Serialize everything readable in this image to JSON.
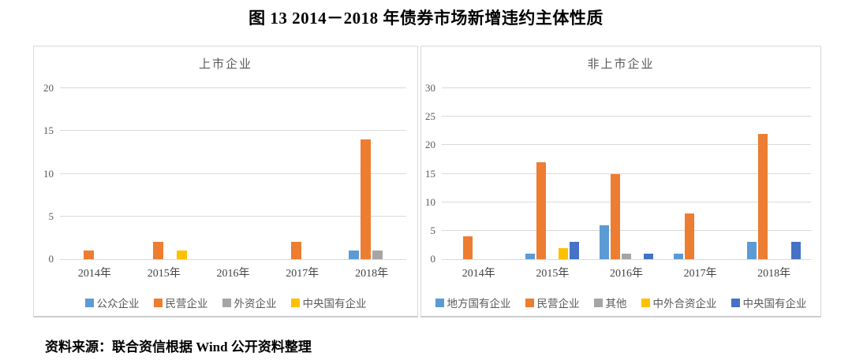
{
  "page": {
    "title": "图 13  2014－2018 年债券市场新增违约主体性质",
    "source": "资料来源：联合资信根据 Wind 公开资料整理"
  },
  "chart_data": [
    {
      "type": "bar",
      "title": "上市企业",
      "categories": [
        "2014年",
        "2015年",
        "2016年",
        "2017年",
        "2018年"
      ],
      "series": [
        {
          "name": "公众企业",
          "color": "#5B9BD5",
          "values": [
            0,
            0,
            0,
            0,
            1
          ]
        },
        {
          "name": "民营企业",
          "color": "#ED7D31",
          "values": [
            1,
            2,
            0,
            2,
            14
          ]
        },
        {
          "name": "外资企业",
          "color": "#A5A5A5",
          "values": [
            0,
            0,
            0,
            0,
            1
          ]
        },
        {
          "name": "中央国有企业",
          "color": "#FFC000",
          "values": [
            0,
            1,
            0,
            0,
            0
          ]
        }
      ],
      "ylim": [
        0,
        20
      ],
      "yticks": [
        0,
        5,
        10,
        15,
        20
      ],
      "grid": true,
      "legend_position": "bottom",
      "xlabel": "",
      "ylabel": ""
    },
    {
      "type": "bar",
      "title": "非上市企业",
      "categories": [
        "2014年",
        "2015年",
        "2016年",
        "2017年",
        "2018年"
      ],
      "series": [
        {
          "name": "地方国有企业",
          "color": "#5B9BD5",
          "values": [
            0,
            1,
            6,
            1,
            3
          ]
        },
        {
          "name": "民营企业",
          "color": "#ED7D31",
          "values": [
            4,
            17,
            15,
            8,
            22
          ]
        },
        {
          "name": "其他",
          "color": "#A5A5A5",
          "values": [
            0,
            0,
            1,
            0,
            0
          ]
        },
        {
          "name": "中外合资企业",
          "color": "#FFC000",
          "values": [
            0,
            2,
            0,
            0,
            0
          ]
        },
        {
          "name": "中央国有企业",
          "color": "#4472C4",
          "values": [
            0,
            3,
            1,
            0,
            3
          ]
        }
      ],
      "ylim": [
        0,
        30
      ],
      "yticks": [
        0,
        5,
        10,
        15,
        20,
        25,
        30
      ],
      "grid": true,
      "legend_position": "bottom",
      "xlabel": "",
      "ylabel": ""
    }
  ]
}
